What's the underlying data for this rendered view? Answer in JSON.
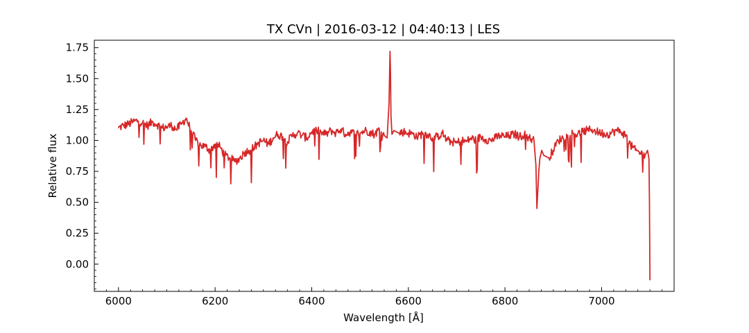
{
  "chart_data": {
    "type": "line",
    "title": "TX CVn | 2016-03-12 | 04:40:13 | LES",
    "xlabel": "Wavelength [Å]",
    "ylabel": "Relative flux",
    "xlim": [
      5950,
      7150
    ],
    "ylim": [
      -0.22,
      1.81
    ],
    "xticks": [
      6000,
      6200,
      6400,
      6600,
      6800,
      7000
    ],
    "xtick_labels": [
      "6000",
      "6200",
      "6400",
      "6600",
      "6800",
      "7000"
    ],
    "yticks": [
      0.0,
      0.25,
      0.5,
      0.75,
      1.0,
      1.25,
      1.5,
      1.75
    ],
    "ytick_labels": [
      "0.00",
      "0.25",
      "0.50",
      "0.75",
      "1.00",
      "1.25",
      "1.50",
      "1.75"
    ],
    "grid": false,
    "series": [
      {
        "color": "#d62728",
        "x": [
          6000,
          6010,
          6020,
          6030,
          6040,
          6050,
          6060,
          6070,
          6080,
          6090,
          6100,
          6110,
          6120,
          6130,
          6140,
          6150,
          6160,
          6170,
          6180,
          6190,
          6200,
          6210,
          6220,
          6230,
          6240,
          6250,
          6260,
          6270,
          6280,
          6290,
          6300,
          6310,
          6320,
          6330,
          6340,
          6350,
          6360,
          6370,
          6380,
          6390,
          6400,
          6410,
          6420,
          6430,
          6440,
          6450,
          6460,
          6470,
          6480,
          6490,
          6500,
          6510,
          6520,
          6530,
          6540,
          6550,
          6556,
          6560,
          6562,
          6563,
          6564,
          6566,
          6570,
          6580,
          6590,
          6600,
          6610,
          6620,
          6630,
          6640,
          6650,
          6660,
          6670,
          6680,
          6690,
          6700,
          6710,
          6720,
          6730,
          6740,
          6750,
          6760,
          6770,
          6780,
          6790,
          6800,
          6810,
          6820,
          6830,
          6840,
          6850,
          6860,
          6864,
          6866,
          6868,
          6870,
          6872,
          6876,
          6880,
          6890,
          6900,
          6910,
          6920,
          6930,
          6940,
          6950,
          6960,
          6970,
          6980,
          6990,
          7000,
          7010,
          7020,
          7030,
          7040,
          7050,
          7060,
          7070,
          7080,
          7090,
          7095,
          7098,
          7099,
          7100
        ],
        "y": [
          1.1,
          1.12,
          1.13,
          1.15,
          1.16,
          1.14,
          1.12,
          1.15,
          1.13,
          1.1,
          1.11,
          1.12,
          1.09,
          1.13,
          1.18,
          1.08,
          1.0,
          0.96,
          0.95,
          0.92,
          0.97,
          0.95,
          0.88,
          0.86,
          0.83,
          0.85,
          0.9,
          0.92,
          0.94,
          0.98,
          1.0,
          0.97,
          1.02,
          1.05,
          1.03,
          0.99,
          1.04,
          1.06,
          1.04,
          1.02,
          1.07,
          1.08,
          1.06,
          1.05,
          1.08,
          1.06,
          1.09,
          1.05,
          1.07,
          1.05,
          1.06,
          1.08,
          1.07,
          1.05,
          1.09,
          1.04,
          1.02,
          1.3,
          1.72,
          1.55,
          1.2,
          1.05,
          1.08,
          1.06,
          1.07,
          1.06,
          1.05,
          1.03,
          1.06,
          1.05,
          1.02,
          1.03,
          1.06,
          1.0,
          0.99,
          0.98,
          1.0,
          0.99,
          1.02,
          1.0,
          1.03,
          1.01,
          1.0,
          1.02,
          1.04,
          1.03,
          1.04,
          1.05,
          1.03,
          1.05,
          1.02,
          1.0,
          0.8,
          0.45,
          0.6,
          0.75,
          0.85,
          0.92,
          0.88,
          0.86,
          0.92,
          1.0,
          1.02,
          1.04,
          1.06,
          1.05,
          1.07,
          1.08,
          1.09,
          1.07,
          1.06,
          1.05,
          1.06,
          1.08,
          1.07,
          1.04,
          0.96,
          0.92,
          0.9,
          0.88,
          0.92,
          0.85,
          0.5,
          -0.13
        ]
      }
    ]
  }
}
